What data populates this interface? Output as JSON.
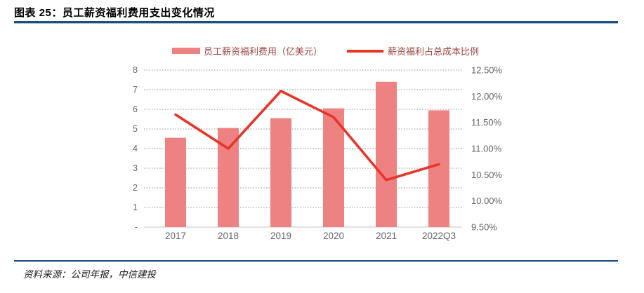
{
  "header": {
    "title": "图表 25：员工薪资福利费用支出变化情况"
  },
  "legend": [
    {
      "type": "bar",
      "label": "员工薪资福利费用（亿美元）"
    },
    {
      "type": "line",
      "label": "薪资福利占总成本比例"
    }
  ],
  "footer": {
    "source": "资料来源：公司年报，中信建投"
  },
  "colors": {
    "bar": "#EE8283",
    "line": "#E8352A",
    "grid": "#8F8F8F",
    "axis_line": "#D9D9D9",
    "axis_text": "#666666",
    "legend_text": "#9C4541",
    "rule_navy": "#1F4E79",
    "rule_light": "#A9C4DE",
    "title_text": "#000000"
  },
  "chart_data": {
    "type": "bar+line combo",
    "categories": [
      "2017",
      "2018",
      "2019",
      "2020",
      "2021",
      "2022Q3"
    ],
    "series": [
      {
        "name": "员工薪资福利费用（亿美元）",
        "type": "bar",
        "axis": "left",
        "values": [
          4.55,
          5.05,
          5.55,
          6.05,
          7.4,
          5.95
        ]
      },
      {
        "name": "薪资福利占总成本比例",
        "type": "line",
        "axis": "right",
        "values": [
          11.65,
          11.0,
          12.1,
          11.6,
          10.4,
          10.7
        ]
      }
    ],
    "left_axis": {
      "min": 0,
      "max": 8,
      "ticks": [
        "8",
        "7",
        "6",
        "5",
        "4",
        "3",
        "2",
        "1",
        "-"
      ]
    },
    "right_axis": {
      "min": 9.5,
      "max": 12.5,
      "ticks": [
        "12.50%",
        "12.00%",
        "11.50%",
        "11.00%",
        "10.50%",
        "10.00%",
        "9.50%"
      ]
    },
    "grid": "horizontal dotted",
    "legend_position": "top-center",
    "title": "员工薪资福利费用支出变化情况"
  }
}
